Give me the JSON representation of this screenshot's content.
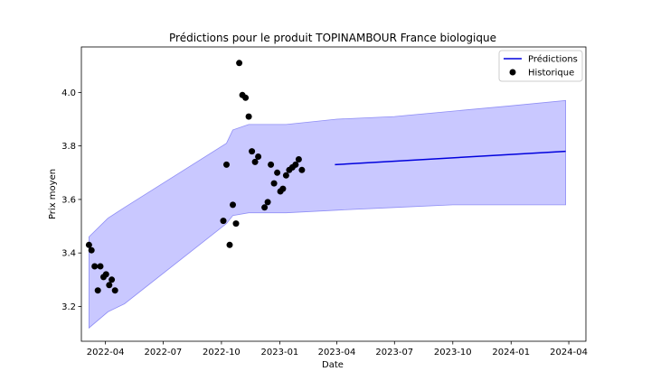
{
  "chart_data": {
    "type": "line",
    "title": "Prédictions pour le produit TOPINAMBOUR France biologique",
    "xlabel": "Date",
    "ylabel": "Prix moyen",
    "xlim": [
      "2022-02-22",
      "2024-04-28"
    ],
    "ylim": [
      3.07,
      4.17
    ],
    "x_ticks": [
      "2022-04",
      "2022-07",
      "2022-10",
      "2023-01",
      "2023-04",
      "2023-07",
      "2023-10",
      "2024-01",
      "2024-04"
    ],
    "y_ticks": [
      "3.2",
      "3.4",
      "3.6",
      "3.8",
      "4.0"
    ],
    "grid": false,
    "legend_position": "upper right",
    "colors": {
      "prediction_line": "#0000dd",
      "band_fill": "#c9c8ff",
      "band_edge": "#8f8ef5",
      "history_points": "#000000"
    },
    "series": [
      {
        "name": "Prédictions",
        "kind": "line",
        "x": [
          "2023-03-29",
          "2024-03-27"
        ],
        "y": [
          3.73,
          3.78
        ]
      },
      {
        "name": "Historique",
        "kind": "scatter",
        "points": [
          {
            "x": "2022-03-06",
            "y": 3.43
          },
          {
            "x": "2022-03-10",
            "y": 3.41
          },
          {
            "x": "2022-03-15",
            "y": 3.35
          },
          {
            "x": "2022-03-20",
            "y": 3.26
          },
          {
            "x": "2022-03-24",
            "y": 3.35
          },
          {
            "x": "2022-03-29",
            "y": 3.31
          },
          {
            "x": "2022-04-02",
            "y": 3.32
          },
          {
            "x": "2022-04-07",
            "y": 3.28
          },
          {
            "x": "2022-04-11",
            "y": 3.3
          },
          {
            "x": "2022-04-16",
            "y": 3.26
          },
          {
            "x": "2022-10-04",
            "y": 3.52
          },
          {
            "x": "2022-10-09",
            "y": 3.73
          },
          {
            "x": "2022-10-14",
            "y": 3.43
          },
          {
            "x": "2022-10-19",
            "y": 3.58
          },
          {
            "x": "2022-10-24",
            "y": 3.51
          },
          {
            "x": "2022-10-29",
            "y": 4.11
          },
          {
            "x": "2022-11-03",
            "y": 3.99
          },
          {
            "x": "2022-11-08",
            "y": 3.98
          },
          {
            "x": "2022-11-13",
            "y": 3.91
          },
          {
            "x": "2022-11-18",
            "y": 3.78
          },
          {
            "x": "2022-11-23",
            "y": 3.74
          },
          {
            "x": "2022-11-28",
            "y": 3.76
          },
          {
            "x": "2022-12-08",
            "y": 3.57
          },
          {
            "x": "2022-12-13",
            "y": 3.59
          },
          {
            "x": "2022-12-18",
            "y": 3.73
          },
          {
            "x": "2022-12-23",
            "y": 3.66
          },
          {
            "x": "2022-12-28",
            "y": 3.7
          },
          {
            "x": "2023-01-02",
            "y": 3.63
          },
          {
            "x": "2023-01-06",
            "y": 3.64
          },
          {
            "x": "2023-01-11",
            "y": 3.69
          },
          {
            "x": "2023-01-16",
            "y": 3.71
          },
          {
            "x": "2023-01-21",
            "y": 3.72
          },
          {
            "x": "2023-01-26",
            "y": 3.73
          },
          {
            "x": "2023-01-31",
            "y": 3.75
          },
          {
            "x": "2023-02-05",
            "y": 3.71
          }
        ]
      }
    ],
    "interval_band": {
      "x": [
        "2022-03-06",
        "2022-04-05",
        "2022-05-01",
        "2022-10-09",
        "2022-10-19",
        "2022-11-13",
        "2023-01-11",
        "2023-04-01",
        "2023-07-01",
        "2023-10-01",
        "2024-01-01",
        "2024-03-27"
      ],
      "upper": [
        3.46,
        3.53,
        3.57,
        3.81,
        3.86,
        3.88,
        3.88,
        3.9,
        3.91,
        3.93,
        3.95,
        3.97
      ],
      "lower": [
        3.12,
        3.18,
        3.21,
        3.51,
        3.54,
        3.55,
        3.55,
        3.56,
        3.57,
        3.58,
        3.58,
        3.58
      ]
    }
  }
}
